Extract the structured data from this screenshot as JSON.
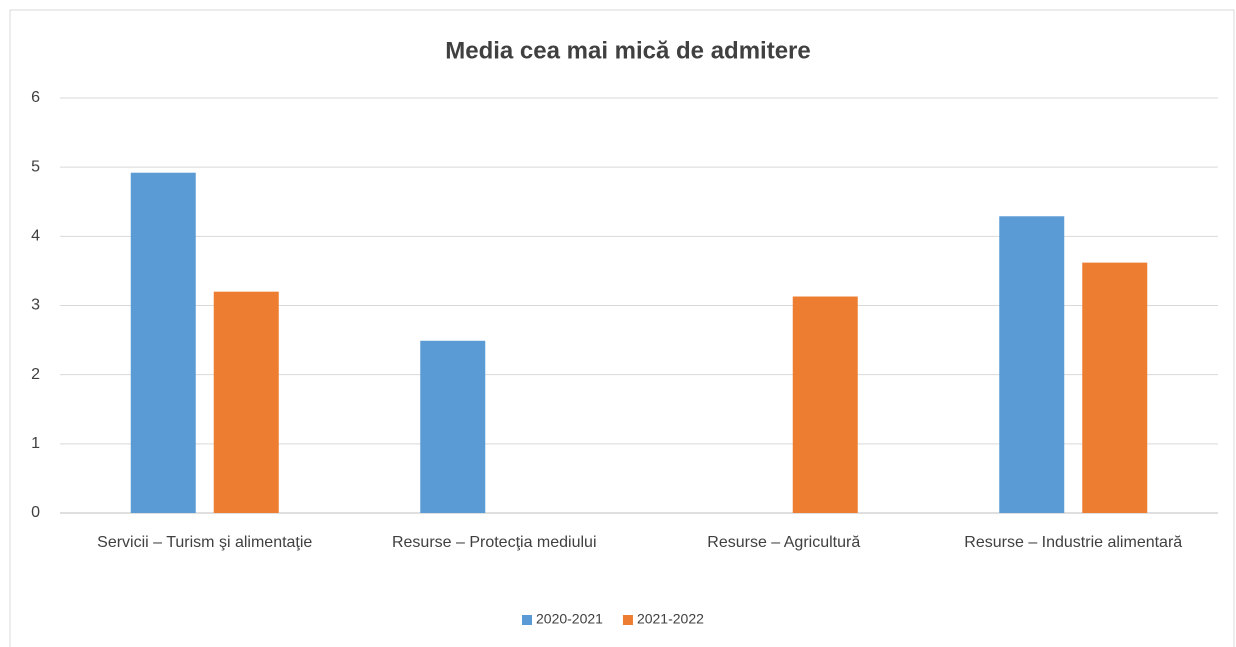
{
  "chart_data": {
    "type": "bar",
    "title": "Media cea mai mică de admitere",
    "categories": [
      "Servicii – Turism şi alimentaţie",
      "Resurse – Protecţia mediului",
      "Resurse – Agricultură",
      "Resurse – Industrie alimentară"
    ],
    "series": [
      {
        "name": "2020-2021",
        "color": "#5b9bd5",
        "values": [
          4.92,
          2.49,
          null,
          4.29
        ]
      },
      {
        "name": "2021-2022",
        "color": "#ed7d31",
        "values": [
          3.2,
          null,
          3.13,
          3.62
        ]
      }
    ],
    "ylim": [
      0,
      6
    ],
    "yticks": [
      0,
      1,
      2,
      3,
      4,
      5,
      6
    ],
    "grid": true,
    "legend": "bottom"
  }
}
